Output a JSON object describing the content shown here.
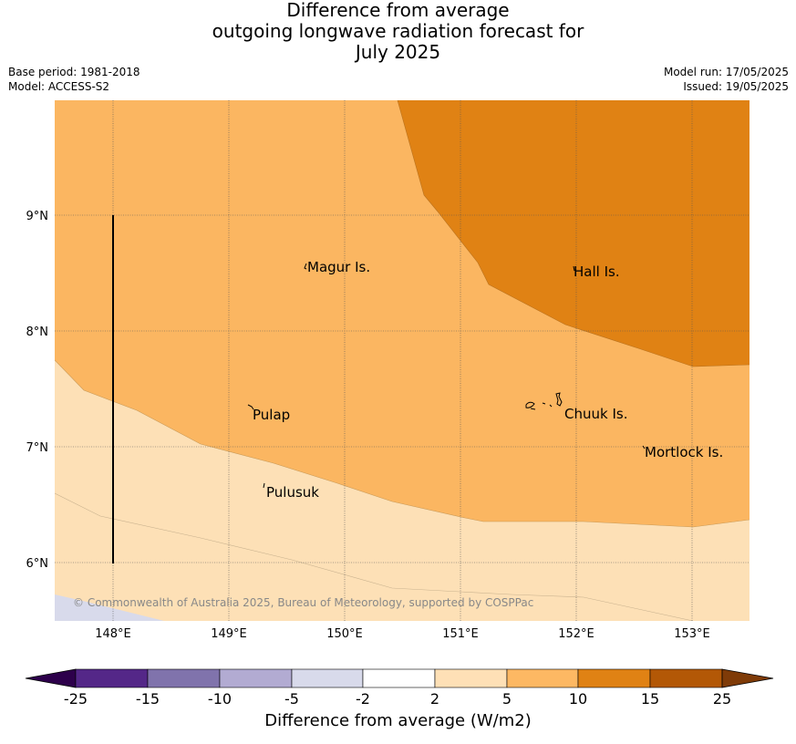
{
  "title": {
    "line1": "Difference from average",
    "line2": "outgoing longwave radiation forecast for",
    "line3": "July 2025"
  },
  "meta": {
    "base_period": "Base period: 1981-2018",
    "model": "Model: ACCESS-S2",
    "model_run": "Model run: 17/05/2025",
    "issued": "Issued: 19/05/2025"
  },
  "map": {
    "lon_ticks": [
      "148°E",
      "149°E",
      "150°E",
      "151°E",
      "152°E",
      "153°E"
    ],
    "lat_ticks": [
      "9°N",
      "8°N",
      "7°N",
      "6°N"
    ],
    "places": [
      {
        "name": "Magur Is."
      },
      {
        "name": "Hall Is."
      },
      {
        "name": "Pulap"
      },
      {
        "name": "Chuuk Is."
      },
      {
        "name": "Mortlock Is."
      },
      {
        "name": "Pulusuk"
      }
    ],
    "copyright": "© Commonwealth of Australia 2025, Bureau of Meteorology, supported by COSPPac",
    "colors": {
      "bin_2_5": "#fde0b6",
      "bin_5_10": "#fbb661",
      "bin_10_15": "#e08214",
      "bin_neg5_neg2": "#d8daeb"
    }
  },
  "colorbar": {
    "title": "Difference from average (W/m2)",
    "ticks": [
      "-25",
      "-15",
      "-10",
      "-5",
      "-2",
      "2",
      "5",
      "10",
      "15",
      "25"
    ],
    "colors": [
      "#2d004b",
      "#542788",
      "#8073ac",
      "#b2abd2",
      "#d8daeb",
      "#ffffff",
      "#fee0b6",
      "#fdb863",
      "#e08214",
      "#b35806",
      "#7f3b08"
    ]
  }
}
